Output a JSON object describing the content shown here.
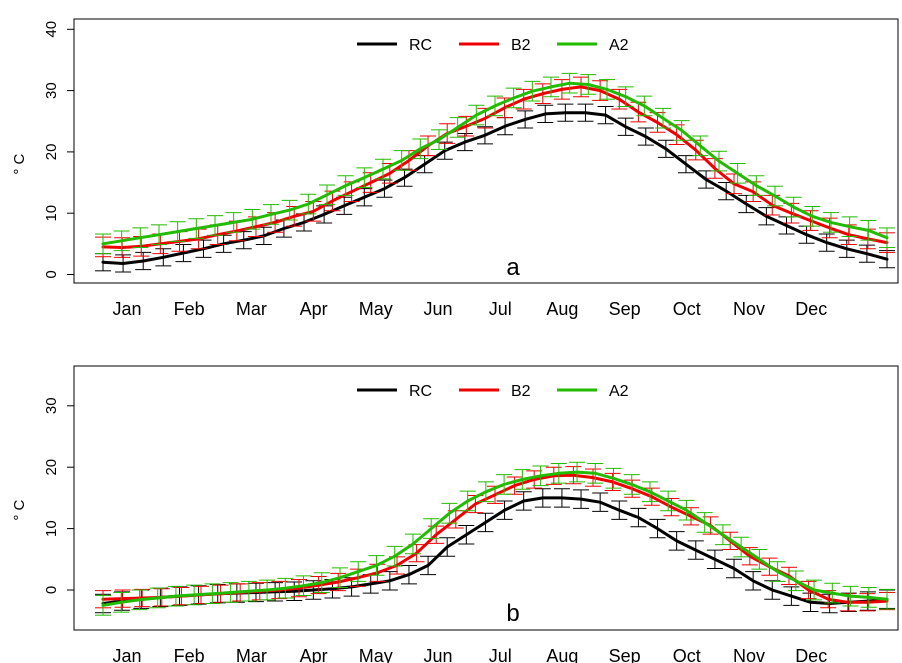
{
  "chart_data": [
    {
      "type": "line",
      "panel_label": "a",
      "ylabel": "° C",
      "ylim": [
        0,
        40
      ],
      "yticks": [
        0,
        10,
        20,
        30,
        40
      ],
      "month_labels": [
        "Jan",
        "Feb",
        "Mar",
        "Apr",
        "May",
        "Jun",
        "Jul",
        "Aug",
        "Sep",
        "Oct",
        "Nov",
        "Dec"
      ],
      "legend_position": "top-center",
      "grid": false,
      "colors": {
        "RC": "#000000",
        "B2": "#ee0000",
        "A2": "#22bb00"
      },
      "series": [
        {
          "name": "RC",
          "err": 1.4,
          "values": [
            2.0,
            1.8,
            2.2,
            2.8,
            3.5,
            4.2,
            5.0,
            5.6,
            6.3,
            7.5,
            8.5,
            9.8,
            11.2,
            12.6,
            14.0,
            15.8,
            18.0,
            20.2,
            21.6,
            22.7,
            24.2,
            25.3,
            26.2,
            26.4,
            26.4,
            26.0,
            24.1,
            22.5,
            20.5,
            18.0,
            15.5,
            13.6,
            11.5,
            9.5,
            8.0,
            6.5,
            5.2,
            4.2,
            3.4,
            2.5
          ]
        },
        {
          "name": "B2",
          "err": 1.6,
          "values": [
            4.5,
            4.4,
            4.6,
            5.0,
            5.4,
            5.8,
            6.5,
            7.1,
            7.8,
            8.5,
            9.5,
            10.3,
            12.0,
            13.5,
            15.0,
            16.5,
            18.6,
            21.0,
            23.0,
            24.2,
            25.5,
            27.2,
            28.6,
            29.5,
            30.2,
            30.6,
            30.0,
            28.6,
            26.5,
            24.8,
            22.8,
            20.3,
            17.3,
            14.8,
            13.5,
            11.3,
            10.0,
            8.8,
            7.6,
            6.5,
            5.8,
            5.2
          ]
        },
        {
          "name": "A2",
          "err": 1.6,
          "values": [
            5.0,
            5.5,
            6.0,
            6.5,
            7.0,
            7.5,
            8.0,
            8.5,
            9.0,
            9.8,
            10.5,
            11.5,
            13.0,
            14.5,
            15.8,
            17.2,
            18.6,
            20.5,
            22.0,
            24.0,
            26.0,
            27.5,
            28.8,
            29.9,
            30.6,
            31.2,
            31.0,
            30.2,
            29.0,
            27.5,
            25.5,
            23.5,
            21.0,
            18.5,
            16.5,
            14.5,
            12.8,
            11.0,
            9.5,
            8.5,
            7.8,
            7.2,
            6.0
          ]
        }
      ]
    },
    {
      "type": "line",
      "panel_label": "b",
      "ylabel": "° C",
      "ylim": [
        -6,
        36
      ],
      "yticks": [
        0,
        10,
        20,
        30
      ],
      "month_labels": [
        "Jan",
        "Feb",
        "Mar",
        "Apr",
        "May",
        "Jun",
        "Jul",
        "Aug",
        "Sep",
        "Oct",
        "Nov",
        "Dec"
      ],
      "legend_position": "top-center",
      "grid": false,
      "colors": {
        "RC": "#000000",
        "B2": "#ee0000",
        "A2": "#22bb00"
      },
      "series": [
        {
          "name": "RC",
          "err": 1.5,
          "values": [
            -2.2,
            -1.8,
            -1.5,
            -1.2,
            -1.0,
            -0.8,
            -0.6,
            -0.5,
            -0.4,
            -0.3,
            -0.2,
            0.0,
            0.2,
            0.5,
            1.0,
            1.5,
            2.5,
            4.0,
            7.0,
            9.0,
            11.0,
            13.0,
            14.5,
            15.0,
            15.0,
            14.8,
            14.3,
            13.0,
            11.8,
            10.0,
            8.0,
            6.5,
            5.0,
            3.5,
            1.5,
            0.0,
            -1.0,
            -2.0,
            -2.2,
            -2.0,
            -1.8,
            -1.5
          ]
        },
        {
          "name": "B2",
          "err": 1.4,
          "values": [
            -1.5,
            -1.4,
            -1.3,
            -1.2,
            -1.0,
            -0.8,
            -0.6,
            -0.4,
            -0.2,
            0.0,
            0.3,
            0.8,
            1.3,
            2.0,
            2.8,
            4.0,
            6.0,
            9.0,
            11.5,
            14.0,
            15.5,
            17.0,
            18.0,
            18.6,
            18.7,
            18.3,
            17.6,
            16.5,
            15.2,
            13.5,
            12.0,
            10.5,
            8.0,
            5.5,
            3.8,
            2.3,
            0.0,
            -1.5,
            -2.0,
            -2.0,
            -1.8
          ]
        },
        {
          "name": "A2",
          "err": 1.6,
          "values": [
            -2.5,
            -2.0,
            -1.6,
            -1.3,
            -1.0,
            -0.8,
            -0.6,
            -0.4,
            -0.2,
            0.0,
            0.3,
            0.7,
            1.2,
            2.0,
            3.0,
            4.0,
            5.5,
            7.5,
            10.0,
            12.5,
            14.5,
            16.0,
            17.2,
            18.0,
            18.6,
            19.0,
            19.2,
            19.0,
            18.2,
            17.2,
            16.0,
            14.5,
            13.0,
            11.0,
            9.0,
            7.0,
            5.0,
            3.0,
            1.5,
            0.0,
            -0.5,
            -1.0,
            -1.2,
            -1.5
          ]
        }
      ]
    }
  ]
}
